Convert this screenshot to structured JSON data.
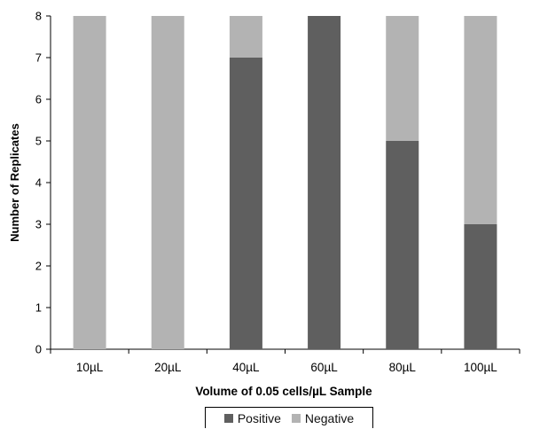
{
  "chart_data": {
    "type": "bar",
    "stacked": true,
    "title": "",
    "xlabel": "Volume of 0.05 cells/µL Sample",
    "ylabel": "Number of Replicates",
    "ylim": [
      0,
      8
    ],
    "yticks": [
      0,
      1,
      2,
      3,
      4,
      5,
      6,
      7,
      8
    ],
    "categories": [
      "10µL",
      "20µL",
      "40µL",
      "60µL",
      "80µL",
      "100µL"
    ],
    "series": [
      {
        "name": "Positive",
        "values": [
          0,
          0,
          7,
          8,
          5,
          3
        ],
        "color": "#5f5f5f"
      },
      {
        "name": "Negative",
        "values": [
          8,
          8,
          1,
          0,
          3,
          5
        ],
        "color": "#b3b3b3"
      }
    ],
    "grid": false,
    "legend_position": "bottom"
  }
}
